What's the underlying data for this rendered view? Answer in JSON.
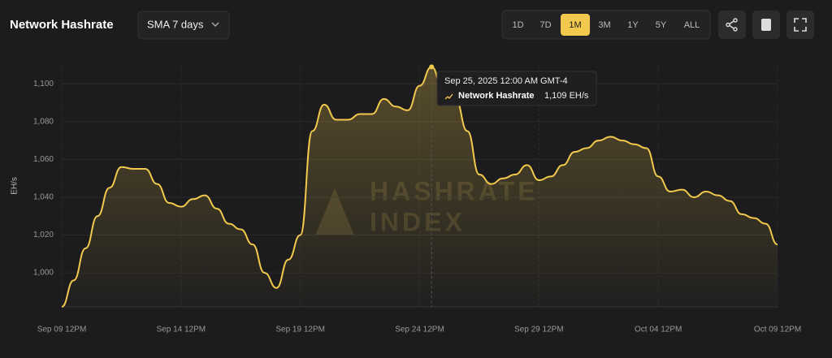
{
  "header": {
    "title": "Network Hashrate",
    "dropdown": "SMA 7 days",
    "ranges": [
      "1D",
      "7D",
      "1M",
      "3M",
      "1Y",
      "5Y",
      "ALL"
    ],
    "active_range": "1M"
  },
  "chart_data": {
    "type": "area",
    "y_label": "EH/s",
    "watermark": [
      "HASHRATE",
      "INDEX"
    ],
    "x": [
      "2025-09-09T12:00",
      "2025-09-10T00:00",
      "2025-09-10T12:00",
      "2025-09-11T00:00",
      "2025-09-11T12:00",
      "2025-09-12T00:00",
      "2025-09-12T12:00",
      "2025-09-13T00:00",
      "2025-09-13T12:00",
      "2025-09-14T00:00",
      "2025-09-14T12:00",
      "2025-09-15T00:00",
      "2025-09-15T12:00",
      "2025-09-16T00:00",
      "2025-09-16T12:00",
      "2025-09-17T00:00",
      "2025-09-17T12:00",
      "2025-09-18T00:00",
      "2025-09-18T12:00",
      "2025-09-19T00:00",
      "2025-09-19T12:00",
      "2025-09-20T00:00",
      "2025-09-20T12:00",
      "2025-09-21T00:00",
      "2025-09-21T12:00",
      "2025-09-22T00:00",
      "2025-09-22T12:00",
      "2025-09-23T00:00",
      "2025-09-23T12:00",
      "2025-09-24T00:00",
      "2025-09-24T12:00",
      "2025-09-25T00:00",
      "2025-09-25T12:00",
      "2025-09-26T00:00",
      "2025-09-26T12:00",
      "2025-09-27T00:00",
      "2025-09-27T12:00",
      "2025-09-28T00:00",
      "2025-09-28T12:00",
      "2025-09-29T00:00",
      "2025-09-29T12:00",
      "2025-09-30T00:00",
      "2025-09-30T12:00",
      "2025-10-01T00:00",
      "2025-10-01T12:00",
      "2025-10-02T00:00",
      "2025-10-02T12:00",
      "2025-10-03T00:00",
      "2025-10-03T12:00",
      "2025-10-04T00:00",
      "2025-10-04T12:00",
      "2025-10-05T00:00",
      "2025-10-05T12:00",
      "2025-10-06T00:00",
      "2025-10-06T12:00",
      "2025-10-07T00:00",
      "2025-10-07T12:00",
      "2025-10-08T00:00",
      "2025-10-08T12:00",
      "2025-10-09T00:00",
      "2025-10-09T12:00"
    ],
    "series": [
      {
        "name": "Network Hashrate",
        "color": "#f2c94c",
        "values": [
          982,
          996,
          1013,
          1030,
          1045,
          1056,
          1055,
          1055,
          1047,
          1037,
          1035,
          1039,
          1041,
          1034,
          1026,
          1023,
          1015,
          1000,
          992,
          1007,
          1020,
          1075,
          1089,
          1081,
          1081,
          1084,
          1084,
          1092,
          1088,
          1086,
          1099,
          1109,
          1096,
          1092,
          1075,
          1052,
          1047,
          1050,
          1052,
          1057,
          1049,
          1051,
          1057,
          1064,
          1066,
          1070,
          1072,
          1070,
          1068,
          1066,
          1051,
          1043,
          1044,
          1040,
          1043,
          1041,
          1038,
          1031,
          1029,
          1026,
          1015
        ]
      }
    ],
    "xlim": [
      "2025-09-09T12:00",
      "2025-10-09T12:00"
    ],
    "xticks": [
      {
        "value": "2025-09-09T12:00",
        "label": "Sep 09 12PM"
      },
      {
        "value": "2025-09-14T12:00",
        "label": "Sep 14 12PM"
      },
      {
        "value": "2025-09-19T12:00",
        "label": "Sep 19 12PM"
      },
      {
        "value": "2025-09-24T12:00",
        "label": "Sep 24 12PM"
      },
      {
        "value": "2025-09-29T12:00",
        "label": "Sep 29 12PM"
      },
      {
        "value": "2025-10-04T12:00",
        "label": "Oct 04 12PM"
      },
      {
        "value": "2025-10-09T12:00",
        "label": "Oct 09 12PM"
      }
    ],
    "ylim": [
      982,
      1110
    ],
    "yticks": [
      {
        "value": 1000,
        "label": "1,000"
      },
      {
        "value": 1020,
        "label": "1,020"
      },
      {
        "value": 1040,
        "label": "1,040"
      },
      {
        "value": 1060,
        "label": "1,060"
      },
      {
        "value": 1080,
        "label": "1,080"
      },
      {
        "value": 1100,
        "label": "1,100"
      }
    ],
    "grid": true,
    "tooltip": {
      "date": "Sep 25, 2025 12:00 AM GMT-4",
      "series": "Network Hashrate",
      "value": "1,109 EH/s",
      "index": 31
    }
  }
}
